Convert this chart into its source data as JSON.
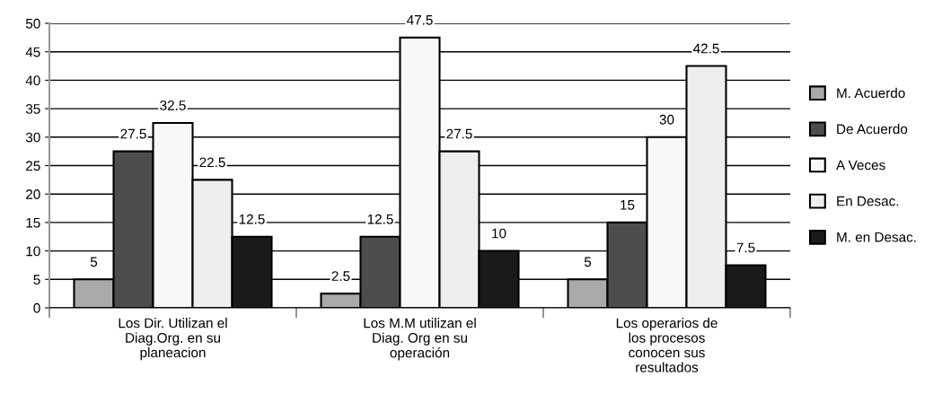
{
  "chart_data": {
    "type": "bar",
    "categories": [
      "Los Dir. Utilizan el\nDiag.Org. en su\nplaneacion",
      "Los M.M utilizan el\nDiag. Org en su\noperación",
      "Los operarios de\nlos procesos\nconocen sus\nresultados"
    ],
    "series": [
      {
        "name": "M. Acuerdo",
        "color": "#a9a9a9",
        "values": [
          5,
          2.5,
          5
        ]
      },
      {
        "name": "De Acuerdo",
        "color": "#4d4d4d",
        "values": [
          27.5,
          12.5,
          15
        ]
      },
      {
        "name": "A Veces",
        "color": "#f8f8f8",
        "values": [
          32.5,
          47.5,
          30
        ]
      },
      {
        "name": "En Desac.",
        "color": "#eeeeee",
        "values": [
          22.5,
          27.5,
          42.5
        ]
      },
      {
        "name": "M. en Desac.",
        "color": "#1a1a1a",
        "values": [
          12.5,
          10,
          7.5
        ]
      }
    ],
    "ylim": [
      0,
      50
    ],
    "yticks": [
      0,
      5,
      10,
      15,
      20,
      25,
      30,
      35,
      40,
      45,
      50
    ],
    "grid": "y",
    "legend": "right",
    "data_labels": true
  }
}
